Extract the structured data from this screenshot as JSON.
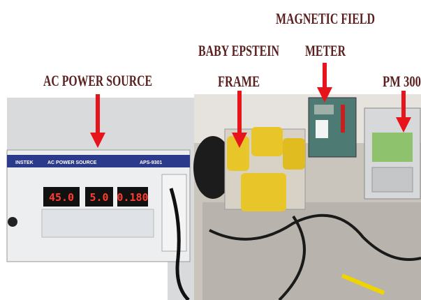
{
  "labels": {
    "ac_power_source": "AC POWER SOURCE",
    "baby_epstein_line1": "BABY EPSTEIN",
    "baby_epstein_line2": "FRAME",
    "magnetic_field_line1": "MAGNETIC FIELD",
    "magnetic_field_line2": "METER",
    "pm_300": "PM 300"
  },
  "device": {
    "brand": "INSTEK",
    "name": "AC POWER SOURCE",
    "model": "APS-9301",
    "displays": [
      "45.0",
      "5.0",
      "0.180"
    ]
  }
}
